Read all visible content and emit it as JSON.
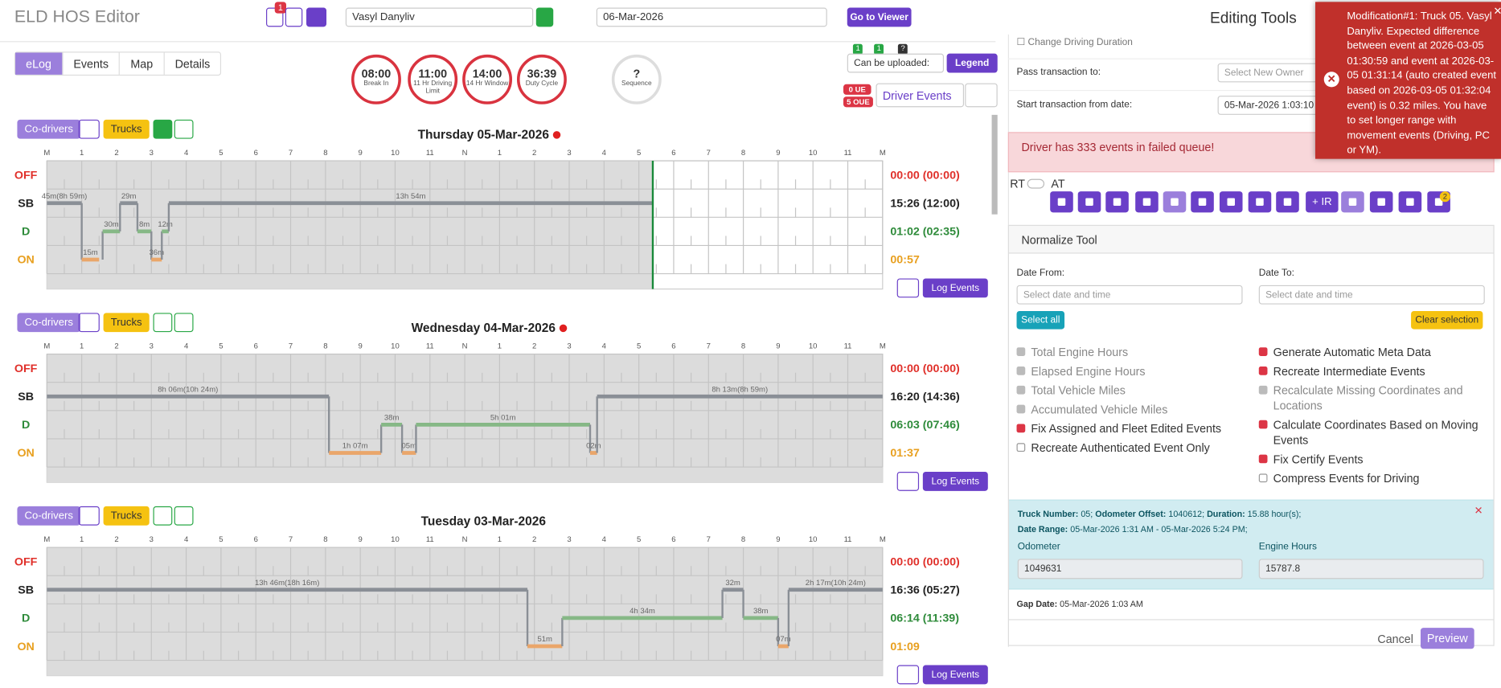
{
  "header": {
    "app_title": "ELD HOS Editor",
    "notes_badge": "1",
    "driver": "Vasyl Danyliv",
    "date": "06-Mar-2026",
    "go_button": "Go to Viewer",
    "editing_title": "Editing Tools"
  },
  "tabs": [
    "eLog",
    "Events",
    "Map",
    "Details"
  ],
  "clocks": [
    {
      "value": "08:00",
      "label": "Break In"
    },
    {
      "value": "11:00",
      "label": "11 Hr Driving Limit"
    },
    {
      "value": "14:00",
      "label": "14 Hr Window"
    },
    {
      "value": "36:39",
      "label": "Duty Cycle"
    },
    {
      "value": "?",
      "label": "Sequence"
    }
  ],
  "upload": {
    "select": "Can be uploaded:",
    "legend": "Legend",
    "ue": "0 UE",
    "oue": "5 OUE",
    "driver_events": "Driver Events",
    "badge_a": "1",
    "badge_b": "1",
    "badge_c": "?"
  },
  "log": {
    "statuses": [
      "OFF",
      "SB",
      "D",
      "ON"
    ],
    "status_colors": [
      "#e0302a",
      "#222222",
      "#2e8b3a",
      "#e8a020"
    ],
    "line_colors": [
      "#8a8f96",
      "#8a8f96",
      "#86b886",
      "#eaa66a"
    ],
    "hours": [
      "M",
      "1",
      "2",
      "3",
      "4",
      "5",
      "6",
      "7",
      "8",
      "9",
      "10",
      "11",
      "N",
      "1",
      "2",
      "3",
      "4",
      "5",
      "6",
      "7",
      "8",
      "9",
      "10",
      "11",
      "M"
    ],
    "codrivers": "Co-drivers",
    "trucks": "Trucks",
    "log_events": "Log Events",
    "days": [
      {
        "title": "Thursday 05-Mar-2026",
        "alert": true,
        "now": 17.4,
        "totals": [
          "00:00 (00:00)",
          "15:26 (12:00)",
          "01:02 (02:35)",
          "00:57"
        ],
        "segments": [
          {
            "status": 1,
            "start": 0,
            "end": 1,
            "label": "45m(8h 59m)"
          },
          {
            "status": 3,
            "start": 1,
            "end": 1.5,
            "label": "15m"
          },
          {
            "status": 2,
            "start": 1.6,
            "end": 2.1,
            "label": "30m"
          },
          {
            "status": 1,
            "start": 2.1,
            "end": 2.6,
            "label": "29m"
          },
          {
            "status": 2,
            "start": 2.6,
            "end": 3.0,
            "label": "8m"
          },
          {
            "status": 3,
            "start": 3.0,
            "end": 3.3,
            "label": "36m"
          },
          {
            "status": 2,
            "start": 3.3,
            "end": 3.5,
            "label": "12m"
          },
          {
            "status": 1,
            "start": 3.5,
            "end": 17.4,
            "label": "13h 54m"
          }
        ]
      },
      {
        "title": "Wednesday 04-Mar-2026",
        "alert": true,
        "now": 24,
        "totals": [
          "00:00 (00:00)",
          "16:20 (14:36)",
          "06:03 (07:46)",
          "01:37"
        ],
        "segments": [
          {
            "status": 1,
            "start": 0,
            "end": 8.1,
            "label": "8h 06m(10h 24m)"
          },
          {
            "status": 3,
            "start": 8.1,
            "end": 9.6,
            "label": "1h 07m"
          },
          {
            "status": 2,
            "start": 9.6,
            "end": 10.2,
            "label": "38m"
          },
          {
            "status": 3,
            "start": 10.2,
            "end": 10.6,
            "label": "05m"
          },
          {
            "status": 2,
            "start": 10.6,
            "end": 15.6,
            "label": "5h 01m"
          },
          {
            "status": 3,
            "start": 15.6,
            "end": 15.8,
            "label": "02m"
          },
          {
            "status": 1,
            "start": 15.8,
            "end": 24,
            "label": "8h 13m(8h 59m)"
          }
        ]
      },
      {
        "title": "Tuesday 03-Mar-2026",
        "alert": false,
        "now": 24,
        "totals": [
          "00:00 (00:00)",
          "16:36 (05:27)",
          "06:14 (11:39)",
          "01:09"
        ],
        "segments": [
          {
            "status": 1,
            "start": 0,
            "end": 13.8,
            "label": "13h 46m(18h 16m)"
          },
          {
            "status": 3,
            "start": 13.8,
            "end": 14.8,
            "label": "51m"
          },
          {
            "status": 2,
            "start": 14.8,
            "end": 19.4,
            "label": "4h 34m"
          },
          {
            "status": 1,
            "start": 19.4,
            "end": 20.0,
            "label": "32m"
          },
          {
            "status": 2,
            "start": 20.0,
            "end": 21.0,
            "label": "38m"
          },
          {
            "status": 3,
            "start": 21.0,
            "end": 21.3,
            "label": "07m"
          },
          {
            "status": 1,
            "start": 21.3,
            "end": 24,
            "label": "2h 17m(10h 24m)"
          }
        ]
      }
    ]
  },
  "editing": {
    "change_driving": "Change Driving Duration",
    "pass_label": "Pass transaction to:",
    "pass_placeholder": "Select New Owner",
    "start_label": "Start transaction from date:",
    "start_value": "05-Mar-2026 1:03:10",
    "alert": "Driver has 333 events in failed queue!",
    "rt": "RT",
    "at": "AT",
    "ir_button": "+ IR",
    "toolbar_badge": "2",
    "normalize_title": "Normalize Tool",
    "date_from": "Date From:",
    "date_to": "Date To:",
    "date_placeholder": "Select date and time",
    "select_all": "Select all",
    "clear_selection": "Clear selection",
    "options_left": [
      {
        "label": "Total Engine Hours",
        "checked": true,
        "disabled": true
      },
      {
        "label": "Elapsed Engine Hours",
        "checked": true,
        "disabled": true
      },
      {
        "label": "Total Vehicle Miles",
        "checked": true,
        "disabled": true
      },
      {
        "label": "Accumulated Vehicle Miles",
        "checked": true,
        "disabled": true
      },
      {
        "label": "Fix Assigned and Fleet Edited Events",
        "checked": true,
        "disabled": false
      },
      {
        "label": "Recreate Authenticated Event Only",
        "checked": false,
        "disabled": false
      }
    ],
    "options_right": [
      {
        "label": "Generate Automatic Meta Data",
        "checked": true,
        "disabled": false
      },
      {
        "label": "Recreate Intermediate Events",
        "checked": true,
        "disabled": false
      },
      {
        "label": "Recalculate Missing Coordinates and Locations",
        "checked": true,
        "disabled": true
      },
      {
        "label": "Calculate Coordinates Based on Moving Events",
        "checked": true,
        "disabled": false
      },
      {
        "label": "Fix Certify Events",
        "checked": true,
        "disabled": false
      },
      {
        "label": "Compress Events for Driving",
        "checked": false,
        "disabled": false
      }
    ],
    "info": {
      "truck_label": "Truck Number:",
      "truck": "05",
      "offset_label": "Odometer Offset:",
      "offset": "1040612",
      "duration_label": "Duration:",
      "duration": "15.88 hour(s)",
      "range_label": "Date Range:",
      "range": "05-Mar-2026 1:31 AM - 05-Mar-2026 5:24 PM",
      "odometer_label": "Odometer",
      "odometer": "1049631",
      "engine_label": "Engine Hours",
      "engine": "15787.8"
    },
    "gap_label": "Gap Date:",
    "gap": "05-Mar-2026 1:03 AM",
    "cancel": "Cancel",
    "preview": "Preview"
  },
  "toast": "Modification#1: Truck 05. Vasyl Danyliv. Expected difference between event at 2026-03-05 01:30:59 and event at 2026-03-05 01:31:14 (auto created event based on 2026-03-05 01:32:04 event) is 0.32 miles. You have to set longer range with movement events (Driving, PC or YM)."
}
